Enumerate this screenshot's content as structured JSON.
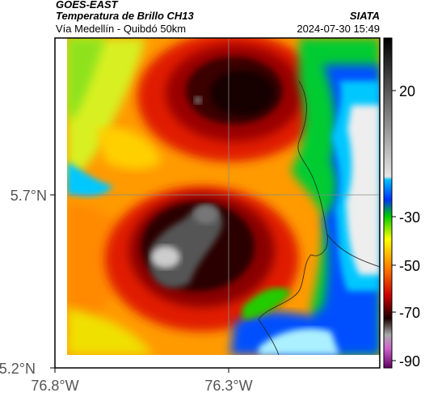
{
  "header": {
    "satellite": "GOES-EAST",
    "product": "Temperatura de Brillo CH13",
    "region": "Vía Medellín - Quibdó 50km",
    "agency": "SIATA",
    "datetime": "2024-07-30 15:49"
  },
  "axes": {
    "lat_labels": [
      "5.7°N",
      "5.2°N"
    ],
    "lon_labels": [
      "76.8°W",
      "76.3°W"
    ]
  },
  "colorbar": {
    "ticks": [
      "20",
      "-30",
      "-50",
      "-70",
      "-90"
    ]
  },
  "colors": {
    "cold": "#1a0000",
    "red": "#cc1100",
    "orange": "#ff8800",
    "yellow": "#e0ff20",
    "green": "#00cc00",
    "cyan": "#00ccff",
    "blue": "#0044ff",
    "clear": "#eeeeee"
  }
}
